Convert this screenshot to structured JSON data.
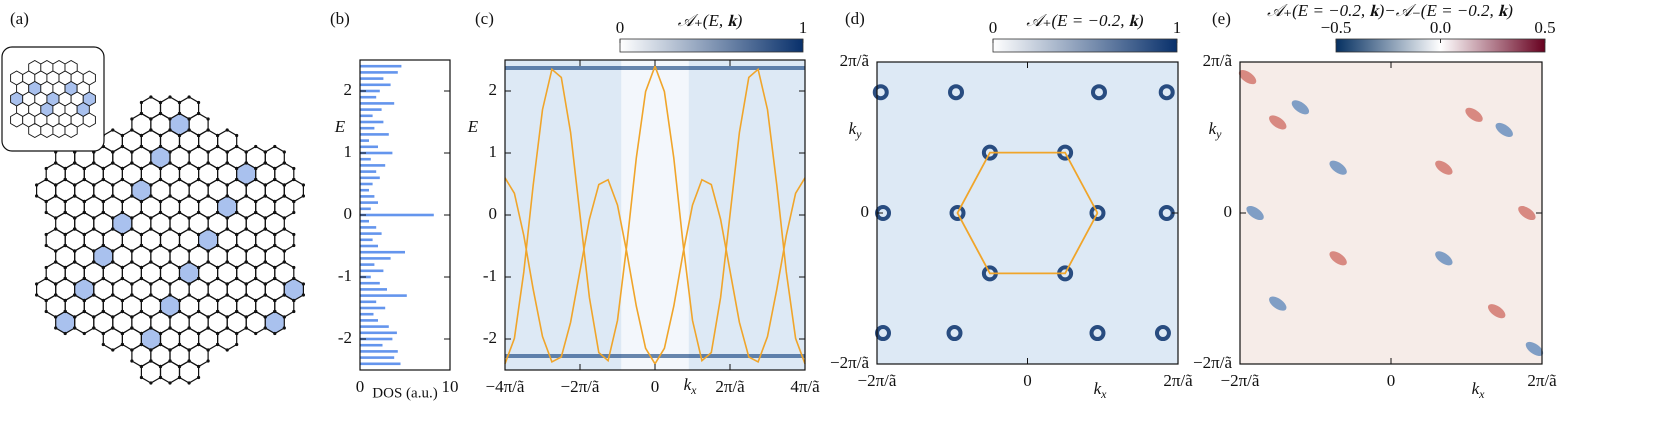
{
  "chart_data": [
    {
      "type": "network",
      "panel": "(a)"
    },
    {
      "type": "bar",
      "panel": "(b)",
      "orientation": "horizontal",
      "color": "#6495ed",
      "ylabel": "E",
      "xlabel": "DOS (a.u.)",
      "x": [
        -2.4,
        -2.3,
        -2.2,
        -2.1,
        -2.0,
        -1.9,
        -1.8,
        -1.7,
        -1.6,
        -1.5,
        -1.4,
        -1.3,
        -1.2,
        -1.1,
        -1.0,
        -0.9,
        -0.8,
        -0.7,
        -0.6,
        -0.5,
        -0.4,
        -0.3,
        -0.2,
        -0.1,
        0,
        0.1,
        0.2,
        0.3,
        0.4,
        0.5,
        0.6,
        0.7,
        0.8,
        0.9,
        1.0,
        1.1,
        1.2,
        1.3,
        1.4,
        1.5,
        1.6,
        1.7,
        1.8,
        1.9,
        2.0,
        2.1,
        2.2,
        2.3,
        2.4
      ],
      "values": [
        4.5,
        3.8,
        4.2,
        2.5,
        3.6,
        4.1,
        3.2,
        2.0,
        1.5,
        2.8,
        1.8,
        5.2,
        3.0,
        2.2,
        1.2,
        2.6,
        1.6,
        3.4,
        5.0,
        2.0,
        1.4,
        2.4,
        1.8,
        1.0,
        8.2,
        1.2,
        2.0,
        1.6,
        1.0,
        1.4,
        2.2,
        1.8,
        2.8,
        1.2,
        3.6,
        2.0,
        1.0,
        3.2,
        1.6,
        2.6,
        1.4,
        2.4,
        3.8,
        1.8,
        2.2,
        3.4,
        2.6,
        4.2,
        4.6
      ],
      "xlim": [
        0,
        10
      ],
      "xticks": [
        0,
        10
      ],
      "ylim": [
        -2.5,
        2.5
      ],
      "yticks": [
        -2,
        -1,
        0,
        1,
        2
      ]
    },
    {
      "type": "heatmap",
      "panel": "(c)",
      "colorbar_label": "𝒜₊(E, 𝐤)",
      "clim": [
        0,
        1
      ],
      "cticks": [
        0,
        1
      ],
      "colormap": [
        "#ffffff",
        "#08306b"
      ],
      "ylabel": "E",
      "xlabel": {
        "text": "k",
        "subscript": "x"
      },
      "xlim": [
        -4,
        4
      ],
      "ylim": [
        -2.5,
        2.5
      ],
      "xticks": [
        {
          "value": -4,
          "label": "−4π/ã"
        },
        {
          "value": -2,
          "label": "−2π/ã"
        },
        0,
        {
          "value": 2,
          "label": "2π/ã"
        },
        {
          "value": 4,
          "label": "4π/ã"
        }
      ],
      "yticks": [
        -2,
        -1,
        0,
        1,
        2
      ],
      "x": [
        -4,
        -3.75,
        -3.5,
        -3.25,
        -3,
        -2.75,
        -2.5,
        -2.25,
        -2,
        -1.75,
        -1.5,
        -1.25,
        -1,
        -0.75,
        -0.5,
        -0.25,
        0,
        0.25,
        0.5,
        0.75,
        1,
        1.25,
        1.5,
        1.75,
        2,
        2.25,
        2.5,
        2.75,
        3,
        3.25,
        3.5,
        3.75,
        4
      ],
      "series": [
        {
          "color": "#f0a52a",
          "values": [
            -2.4,
            -1.99,
            -0.92,
            0.47,
            1.7,
            2.35,
            2.22,
            1.33,
            0,
            -1.33,
            -2.22,
            -2.35,
            -1.7,
            -0.47,
            0.92,
            1.99,
            2.4,
            1.99,
            0.92,
            -0.47,
            -1.7,
            -2.35,
            -2.22,
            -1.33,
            0,
            1.33,
            2.22,
            2.35,
            1.7,
            0.47,
            -0.92,
            -1.99,
            -2.4
          ]
        },
        {
          "color": "#f0a52a",
          "values": [
            0.6,
            0.35,
            -0.33,
            -1.19,
            -1.96,
            -2.37,
            -2.29,
            -1.73,
            -0.9,
            -0.07,
            0.49,
            0.57,
            0.16,
            -0.61,
            -1.47,
            -2.15,
            -2.4,
            -2.15,
            -1.47,
            -0.61,
            0.16,
            0.57,
            0.49,
            -0.07,
            -0.9,
            -1.73,
            -2.29,
            -2.37,
            -1.96,
            -1.19,
            -0.33,
            0.35,
            0.6
          ]
        }
      ]
    },
    {
      "type": "heatmap",
      "panel": "(d)",
      "colorbar_label": "𝒜₊(E = −0.2, 𝐤)",
      "clim": [
        0,
        1
      ],
      "cticks": [
        0,
        1
      ],
      "colormap": [
        "#ffffff",
        "#08306b"
      ],
      "ylabel": {
        "text": "k",
        "subscript": "y"
      },
      "xlabel": {
        "text": "k",
        "subscript": "x"
      },
      "xlim": [
        -2,
        2
      ],
      "ylim": [
        -2,
        2
      ],
      "xticks": [
        {
          "value": -2,
          "label": "−2π/ã"
        },
        0,
        {
          "value": 2,
          "label": "2π/ã"
        }
      ],
      "yticks": [
        {
          "value": -2,
          "label": "−2π/ã"
        },
        0,
        {
          "value": 2,
          "label": "2π/ã"
        }
      ],
      "zone_color": "#f0a52a",
      "zone_x": [
        0.93,
        0.5,
        -0.5,
        -0.93,
        -0.5,
        0.5,
        0.93
      ],
      "zone_y": [
        0,
        0.8,
        0.8,
        0,
        -0.8,
        -0.8,
        0
      ],
      "spots_x": [
        -1.95,
        -0.95,
        0.95,
        1.85,
        -1.92,
        1.85,
        -1.92,
        -0.97,
        0.93,
        1.8,
        -0.5,
        0.5,
        -0.93,
        0.93,
        -0.5,
        0.5
      ],
      "spots_y": [
        1.6,
        1.6,
        1.6,
        1.6,
        0,
        0,
        -1.59,
        -1.59,
        -1.59,
        -1.59,
        0.8,
        0.8,
        0,
        0,
        -0.8,
        -0.8
      ]
    },
    {
      "type": "heatmap",
      "panel": "(e)",
      "colorbar_label": "𝒜₊(E = −0.2, 𝐤)−𝒜₋(E = −0.2, 𝐤)",
      "clim": [
        -0.5,
        0.5
      ],
      "cticks": [
        {
          "value": -0.5,
          "label": "−0.5"
        },
        {
          "value": 0,
          "label": "0.0"
        },
        0.5
      ],
      "colormap": [
        "#053061",
        "#ffffff",
        "#67001f"
      ],
      "ylabel": {
        "text": "k",
        "subscript": "y"
      },
      "xlabel": {
        "text": "k",
        "subscript": "x"
      },
      "xlim": [
        -2,
        2
      ],
      "ylim": [
        -2,
        2
      ],
      "xticks": [
        {
          "value": -2,
          "label": "−2π/ã"
        },
        0,
        {
          "value": 2,
          "label": "2π/ã"
        }
      ],
      "yticks": [
        {
          "value": -2,
          "label": "−2π/ã"
        },
        0,
        {
          "value": 2,
          "label": "2π/ã"
        }
      ]
    }
  ]
}
